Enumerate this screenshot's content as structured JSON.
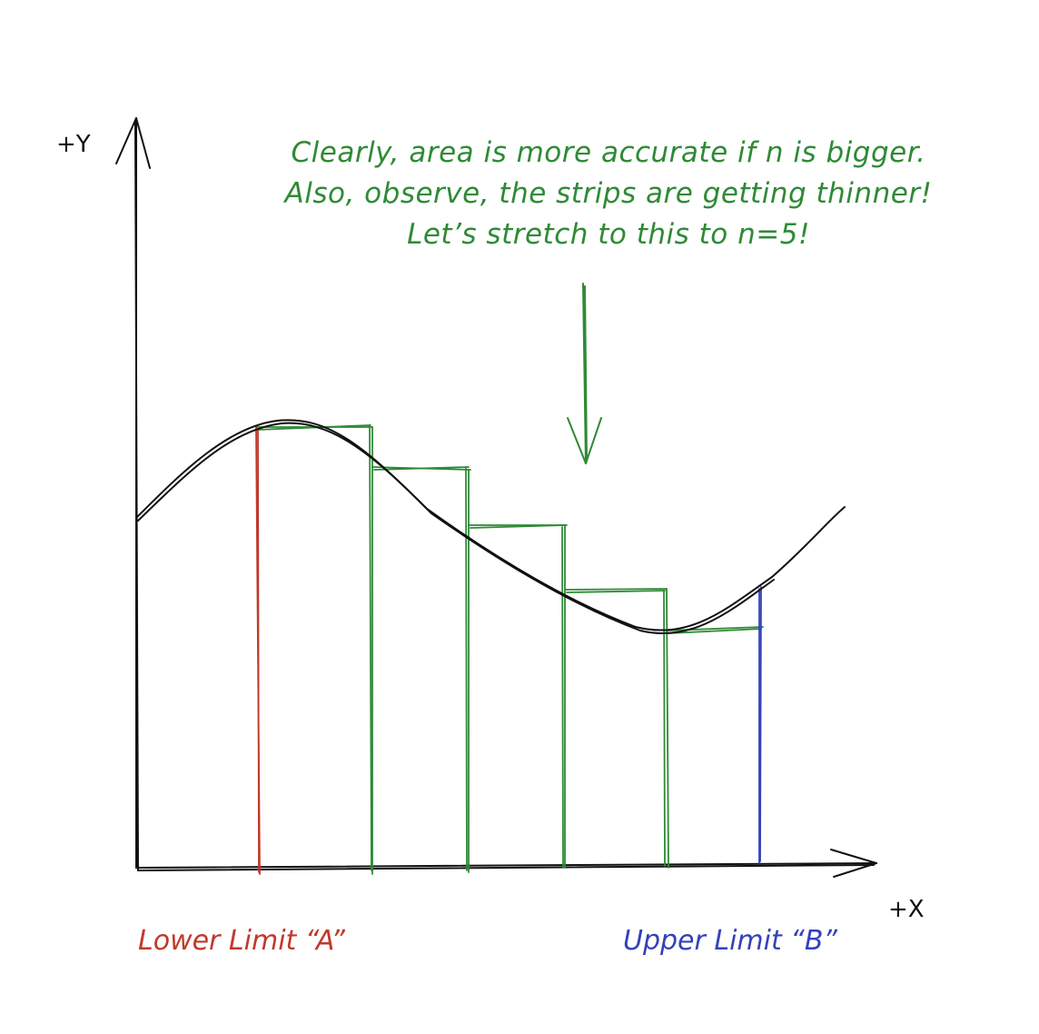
{
  "axes": {
    "y_label": "+Y",
    "x_label": "+X"
  },
  "note": {
    "line1": "Clearly, area is more accurate if n is bigger.",
    "line2": "Also, observe, the strips are getting thinner!",
    "line3": "Let’s stretch to this to n=5!"
  },
  "limits": {
    "lower": "Lower Limit “A”",
    "upper": "Upper Limit “B”"
  },
  "strips": {
    "n": 5
  },
  "colors": {
    "curve": "#111111",
    "axes": "#111111",
    "strips": "#2f8a36",
    "lower_limit": "#c0392b",
    "upper_limit": "#3442b8",
    "note": "#2f8a36"
  }
}
